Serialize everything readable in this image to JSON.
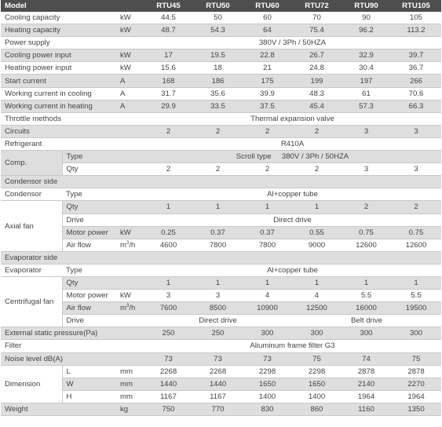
{
  "header": {
    "label": "Model",
    "models": [
      "RTU45",
      "RTU50",
      "RTU60",
      "RTU72",
      "RTU90",
      "RTU105"
    ]
  },
  "cooling_capacity": {
    "label": "Cooling capacity",
    "unit": "kW",
    "values": [
      "44.5",
      "50",
      "60",
      "70",
      "90",
      "105"
    ]
  },
  "heating_capacity": {
    "label": "Heating capacity",
    "unit": "kW",
    "values": [
      "48.7",
      "54.3",
      "64",
      "75.4",
      "96.2",
      "113.2"
    ]
  },
  "power_supply": {
    "label": "Power supply",
    "value": "380V / 3Ph / 50HZA"
  },
  "cooling_power_input": {
    "label": "Cooling power input",
    "unit": "kW",
    "values": [
      "17",
      "19.5",
      "22.8",
      "26.7",
      "32.9",
      "39.7"
    ]
  },
  "heating_power_input": {
    "label": "Heating power input",
    "unit": "kW",
    "values": [
      "15.6",
      "18",
      "21",
      "24.8",
      "30.4",
      "36.7"
    ]
  },
  "start_current": {
    "label": "Start current",
    "unit": "A",
    "values": [
      "168",
      "186",
      "175",
      "199",
      "197",
      "266"
    ]
  },
  "working_current_cooling": {
    "label": "Working current in cooling",
    "unit": "A",
    "values": [
      "31.7",
      "35.6",
      "39.9",
      "48.3",
      "61",
      "70.6"
    ]
  },
  "working_current_heating": {
    "label": "Working current in heating",
    "unit": "A",
    "values": [
      "29.9",
      "33.5",
      "37.5",
      "45.4",
      "57.3",
      "66.3"
    ]
  },
  "throttle_methods": {
    "label": "Throttle methods",
    "value": "Thermal expansion valve"
  },
  "circuits": {
    "label": "Circuits",
    "values": [
      "2",
      "2",
      "2",
      "2",
      "3",
      "3"
    ]
  },
  "refrigerant": {
    "label": "Refrigerant",
    "value": "R410A"
  },
  "comp": {
    "label": "Comp.",
    "type_label": "Type",
    "type_value": "Scroll type     380V / 3Ph / 50HZA",
    "qty_label": "Qty",
    "qty_values": [
      "2",
      "2",
      "2",
      "2",
      "3",
      "3"
    ]
  },
  "condensor_side": {
    "label": "Condensor side"
  },
  "condensor": {
    "label": "Condensor",
    "type_label": "Type",
    "type_value": "Al+copper tube"
  },
  "axial_fan": {
    "label": "Axial fan",
    "qty_label": "Qty",
    "qty_values": [
      "1",
      "1",
      "1",
      "1",
      "2",
      "2"
    ],
    "drive_label": "Drive",
    "drive_value": "Direct drive",
    "motor_label": "Motor power",
    "motor_unit": "kW",
    "motor_values": [
      "0.25",
      "0.37",
      "0.37",
      "0.55",
      "0.75",
      "0.75"
    ],
    "airflow_label": "Air flow",
    "airflow_unit": "m",
    "airflow_unit_sup": "3",
    "airflow_unit_tail": "/h",
    "airflow_values": [
      "4600",
      "7800",
      "7800",
      "9000",
      "12600",
      "12600"
    ]
  },
  "evaporator_side": {
    "label": "Evaporator side"
  },
  "evaporator": {
    "label": "Evaporator",
    "type_label": "Type",
    "type_value": "Al+copper tube"
  },
  "centrifugal_fan": {
    "label": "Centrifugal fan",
    "qty_label": "Qty",
    "qty_values": [
      "1",
      "1",
      "1",
      "1",
      "1",
      "1"
    ],
    "motor_label": "Motor power",
    "motor_unit": "kW",
    "motor_values": [
      "3",
      "3",
      "4",
      "4",
      "5.5",
      "5.5"
    ],
    "airflow_label": "Air flow",
    "airflow_unit": "m",
    "airflow_unit_sup": "3",
    "airflow_unit_tail": "/h",
    "airflow_values": [
      "7600",
      "8500",
      "10900",
      "12500",
      "16000",
      "19500"
    ],
    "drive_label": "Drive",
    "drive_direct": "Direct drive",
    "drive_belt": "Belt drive"
  },
  "external_static_pressure": {
    "label": "External static pressure(Pa)",
    "values": [
      "250",
      "250",
      "300",
      "300",
      "300",
      "300"
    ]
  },
  "filter": {
    "label": "Filter",
    "value": "Aliuminum frame filter G3"
  },
  "noise_level": {
    "label": "Noise level dB(A)",
    "values": [
      "73",
      "73",
      "73",
      "75",
      "74",
      "75"
    ]
  },
  "dimension": {
    "label": "Dimension",
    "l_label": "L",
    "l_unit": "mm",
    "l_values": [
      "2268",
      "2268",
      "2298",
      "2298",
      "2878",
      "2878"
    ],
    "w_label": "W",
    "w_unit": "mm",
    "w_values": [
      "1440",
      "1440",
      "1650",
      "1650",
      "2140",
      "2270"
    ],
    "h_label": "H",
    "h_unit": "mm",
    "h_values": [
      "1167",
      "1167",
      "1400",
      "1400",
      "1964",
      "1964"
    ]
  },
  "weight": {
    "label": "Weight",
    "unit": "kg",
    "values": [
      "750",
      "770",
      "830",
      "860",
      "1160",
      "1350"
    ]
  }
}
